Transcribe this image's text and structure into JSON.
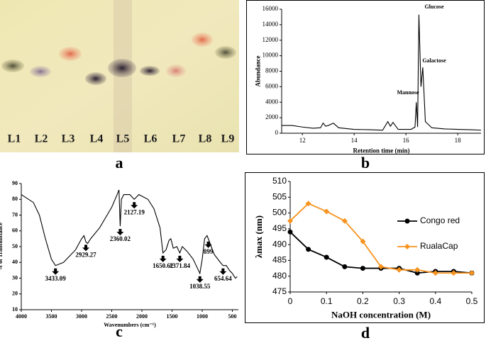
{
  "panel_labels": [
    "a",
    "b",
    "c",
    "d"
  ],
  "tlc_plate": {
    "lanes": [
      "L1",
      "L2",
      "L3",
      "L4",
      "L5",
      "L6",
      "L7",
      "L8",
      "L9"
    ]
  },
  "chart_data": [
    {
      "type": "line",
      "ylabel": "Abundance",
      "xlabel": "Retention time (min)",
      "color": "#000000",
      "x": [
        11.2,
        11.6,
        12.0,
        12.4,
        12.7,
        12.8,
        12.9,
        13.0,
        13.2,
        13.4,
        14.0,
        14.6,
        15.1,
        15.3,
        15.4,
        15.5,
        15.7,
        16.2,
        16.35,
        16.4,
        16.45,
        16.5,
        16.58,
        16.65,
        16.75,
        17.0,
        17.5,
        18.0,
        18.5,
        18.9
      ],
      "values": [
        1000,
        1000,
        800,
        650,
        700,
        1300,
        900,
        1000,
        1300,
        700,
        500,
        450,
        400,
        1500,
        900,
        1400,
        500,
        500,
        800,
        4000,
        800,
        15300,
        6000,
        8500,
        1500,
        700,
        550,
        500,
        450,
        400
      ],
      "xlim": [
        11.2,
        18.9
      ],
      "ylim": [
        0,
        16000
      ],
      "xticks": [
        12,
        14,
        16,
        18
      ],
      "yticks": [
        0,
        2000,
        4000,
        6000,
        8000,
        10000,
        12000,
        14000,
        16000
      ],
      "annotations": [
        "Glucose",
        "Galactose",
        "Mannose"
      ]
    },
    {
      "type": "line",
      "ylabel": "% of Transmittance",
      "xlabel": "Wavenumbers (cm⁻¹)",
      "color": "#000000",
      "x": [
        4000,
        3800,
        3700,
        3600,
        3500,
        3433.09,
        3300,
        3200,
        3100,
        3000,
        2960,
        2929.27,
        2900,
        2850,
        2700,
        2500,
        2400,
        2380,
        2360.02,
        2340,
        2300,
        2200,
        2127.19,
        2050,
        1900,
        1800,
        1700,
        1650.62,
        1600,
        1550,
        1520,
        1480,
        1420,
        1371.84,
        1330,
        1250,
        1150,
        1100,
        1038.55,
        1000,
        960,
        920,
        899,
        850,
        800,
        700,
        654.64,
        600,
        550,
        500,
        450,
        420
      ],
      "values": [
        83,
        78,
        70,
        55,
        42,
        38,
        40,
        44,
        48,
        55,
        57,
        53,
        52,
        55,
        62,
        75,
        84,
        86,
        63,
        80,
        83,
        83,
        80,
        83,
        80,
        74,
        62,
        46,
        48,
        54,
        55,
        49,
        50,
        46,
        50,
        47,
        42,
        38,
        33,
        42,
        55,
        57,
        55,
        50,
        45,
        40,
        38,
        38,
        35,
        33,
        30,
        31
      ],
      "xlim": [
        4000,
        400
      ],
      "ylim": [
        10,
        90
      ],
      "xticks": [
        4000,
        3500,
        3000,
        2500,
        2000,
        1500,
        1000,
        500
      ],
      "yticks": [
        10,
        20,
        30,
        40,
        50,
        60,
        70,
        80,
        90
      ],
      "peaks": [
        3433.09,
        2929.27,
        2360.02,
        2127.19,
        1650.62,
        1371.84,
        1038.55,
        899,
        654.64
      ]
    },
    {
      "type": "line",
      "ylabel": "λmax (nm)",
      "xlabel": "NaOH concentration (M)",
      "x": [
        0,
        0.05,
        0.1,
        0.15,
        0.2,
        0.25,
        0.3,
        0.35,
        0.4,
        0.45,
        0.5
      ],
      "series": [
        {
          "name": "Congo red",
          "color": "#000000",
          "marker": "circle",
          "values": [
            494,
            488.5,
            486,
            483,
            482.5,
            482.5,
            482.5,
            481,
            481.5,
            481.5,
            481
          ]
        },
        {
          "name": "RualaCap",
          "color": "#f7931e",
          "marker": "diamond",
          "values": [
            497.5,
            503,
            500.5,
            497.5,
            491,
            483,
            482,
            482,
            481,
            481,
            481
          ]
        }
      ],
      "xlim": [
        0,
        0.5
      ],
      "ylim": [
        475,
        510
      ],
      "xticks": [
        0,
        0.1,
        0.2,
        0.3,
        0.4,
        0.5
      ],
      "yticks": [
        475,
        480,
        485,
        490,
        495,
        500,
        505,
        510
      ],
      "legend": "right"
    }
  ]
}
